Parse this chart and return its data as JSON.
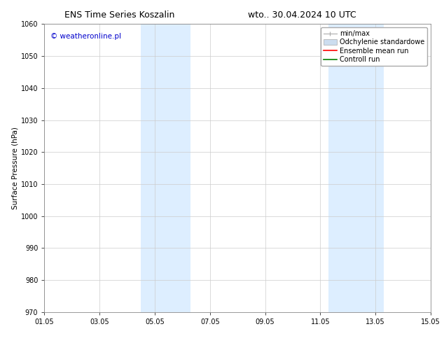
{
  "title_left": "ENS Time Series Koszalin",
  "title_right": "wto.. 30.04.2024 10 UTC",
  "ylabel": "Surface Pressure (hPa)",
  "ylim": [
    970,
    1060
  ],
  "yticks": [
    970,
    980,
    990,
    1000,
    1010,
    1020,
    1030,
    1040,
    1050,
    1060
  ],
  "xtick_labels": [
    "01.05",
    "03.05",
    "05.05",
    "07.05",
    "09.05",
    "11.05",
    "13.05",
    "15.05"
  ],
  "xtick_positions": [
    0,
    2,
    4,
    6,
    8,
    10,
    12,
    14
  ],
  "xlim": [
    0,
    14
  ],
  "shaded_regions": [
    {
      "x_start": 3.5,
      "x_end": 5.3,
      "color": "#ddeeff"
    },
    {
      "x_start": 10.3,
      "x_end": 12.3,
      "color": "#ddeeff"
    }
  ],
  "watermark_text": "© weatheronline.pl",
  "watermark_color": "#0000cc",
  "background_color": "#ffffff",
  "grid_color": "#cccccc",
  "legend_items": [
    {
      "label": "min/max",
      "color": "#aaaaaa",
      "style": "errorbar"
    },
    {
      "label": "Odchylenie standardowe",
      "color": "#ccddef",
      "style": "box"
    },
    {
      "label": "Ensemble mean run",
      "color": "#ff0000",
      "style": "line"
    },
    {
      "label": "Controll run",
      "color": "#008000",
      "style": "line"
    }
  ],
  "font_family": "DejaVu Sans",
  "title_fontsize": 9,
  "axis_label_fontsize": 7.5,
  "tick_fontsize": 7,
  "legend_fontsize": 7,
  "watermark_fontsize": 7.5
}
